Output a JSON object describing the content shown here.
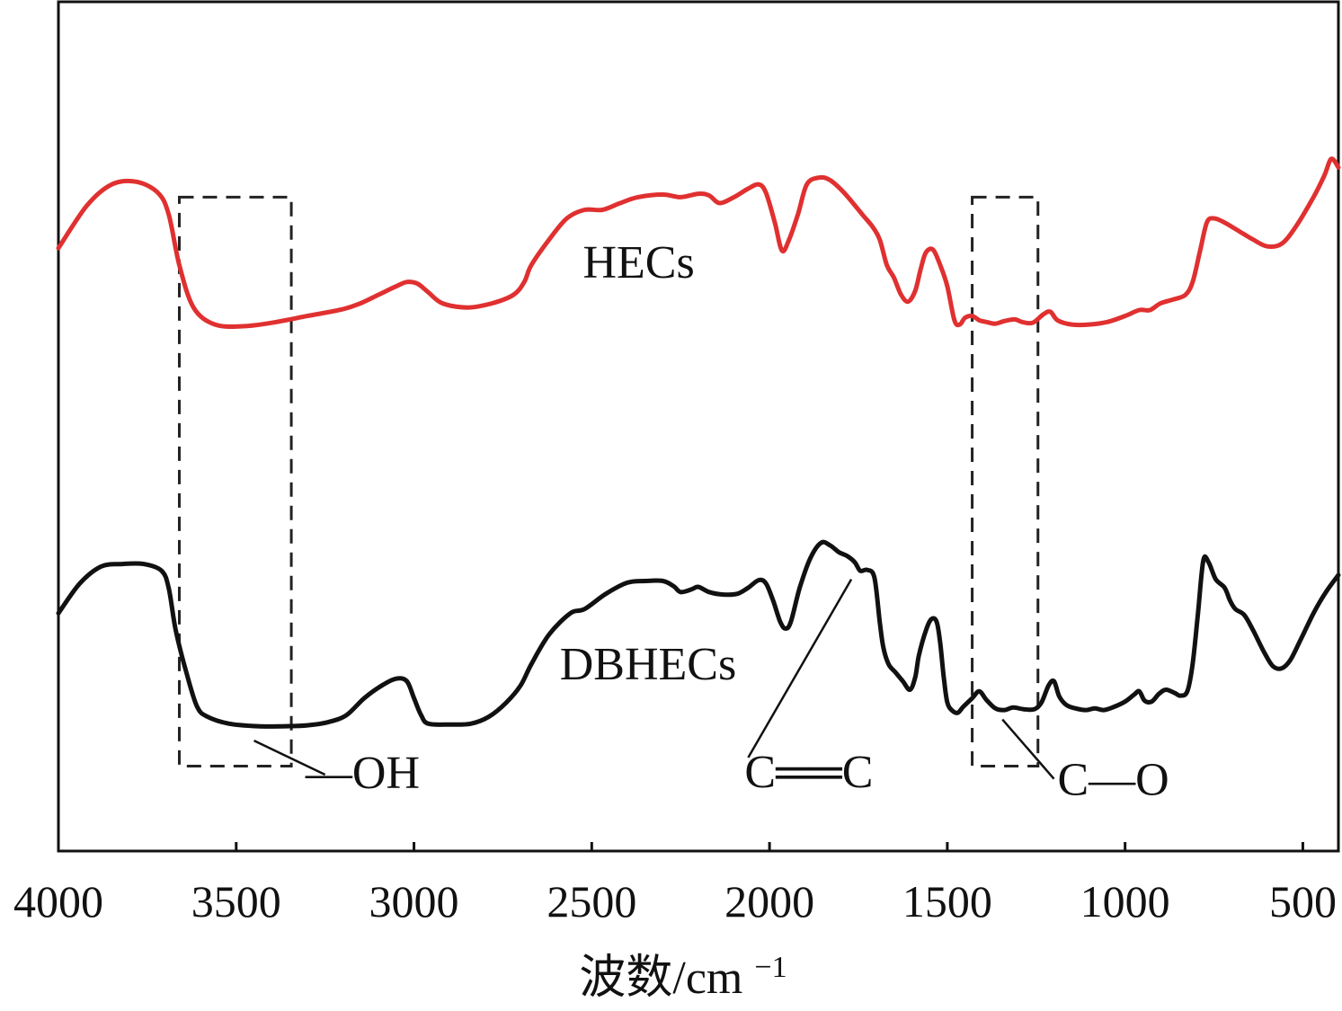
{
  "chart_data": {
    "type": "line",
    "title": "",
    "xlabel": "波数/cm",
    "xlabel_superscript": "−1",
    "ylabel": "",
    "x_reversed": true,
    "xlim": [
      4000,
      400
    ],
    "ylim": [
      0,
      100
    ],
    "y_ticks_shown": false,
    "grid": false,
    "x_ticks": [
      4000,
      3500,
      3000,
      2500,
      2000,
      1500,
      1000,
      500
    ],
    "x_tick_labels": [
      "4000",
      "3500",
      "3000",
      "2500",
      "2000",
      "1500",
      "1000",
      "500"
    ],
    "series": [
      {
        "name": "HECs",
        "color": "#e03030",
        "points": [
          [
            4000,
            71
          ],
          [
            3920,
            76
          ],
          [
            3850,
            78.5
          ],
          [
            3780,
            78.8
          ],
          [
            3720,
            77.5
          ],
          [
            3690,
            75
          ],
          [
            3660,
            69
          ],
          [
            3620,
            64
          ],
          [
            3560,
            62
          ],
          [
            3480,
            61.8
          ],
          [
            3400,
            62.2
          ],
          [
            3300,
            63
          ],
          [
            3200,
            63.8
          ],
          [
            3150,
            64.5
          ],
          [
            3100,
            65.5
          ],
          [
            3050,
            66.5
          ],
          [
            3020,
            67
          ],
          [
            2990,
            66.8
          ],
          [
            2960,
            65.8
          ],
          [
            2920,
            64.5
          ],
          [
            2850,
            64
          ],
          [
            2780,
            64.5
          ],
          [
            2720,
            65.5
          ],
          [
            2690,
            67
          ],
          [
            2670,
            69
          ],
          [
            2620,
            72
          ],
          [
            2570,
            74.5
          ],
          [
            2520,
            75.5
          ],
          [
            2470,
            75.5
          ],
          [
            2420,
            76.3
          ],
          [
            2370,
            77
          ],
          [
            2300,
            77.3
          ],
          [
            2250,
            77
          ],
          [
            2200,
            77.4
          ],
          [
            2170,
            77.2
          ],
          [
            2140,
            76.3
          ],
          [
            2100,
            77
          ],
          [
            2060,
            78
          ],
          [
            2030,
            78.5
          ],
          [
            2010,
            77.5
          ],
          [
            1985,
            74
          ],
          [
            1965,
            70.7
          ],
          [
            1945,
            72
          ],
          [
            1920,
            75
          ],
          [
            1895,
            78.5
          ],
          [
            1860,
            79.3
          ],
          [
            1830,
            79
          ],
          [
            1790,
            77.5
          ],
          [
            1740,
            75
          ],
          [
            1710,
            73.5
          ],
          [
            1690,
            72
          ],
          [
            1670,
            69
          ],
          [
            1650,
            67.5
          ],
          [
            1630,
            65.5
          ],
          [
            1610,
            64.7
          ],
          [
            1590,
            66
          ],
          [
            1575,
            68.5
          ],
          [
            1560,
            70.5
          ],
          [
            1540,
            70.8
          ],
          [
            1520,
            69
          ],
          [
            1500,
            66.5
          ],
          [
            1480,
            62.5
          ],
          [
            1465,
            62
          ],
          [
            1450,
            62.8
          ],
          [
            1430,
            63
          ],
          [
            1410,
            62.5
          ],
          [
            1390,
            62.3
          ],
          [
            1365,
            62.1
          ],
          [
            1340,
            62.4
          ],
          [
            1310,
            62.6
          ],
          [
            1290,
            62.3
          ],
          [
            1260,
            62.2
          ],
          [
            1230,
            63.2
          ],
          [
            1210,
            63.5
          ],
          [
            1190,
            62.5
          ],
          [
            1150,
            62
          ],
          [
            1100,
            62
          ],
          [
            1050,
            62.3
          ],
          [
            1000,
            63
          ],
          [
            960,
            63.7
          ],
          [
            930,
            63.7
          ],
          [
            900,
            64.5
          ],
          [
            860,
            65
          ],
          [
            830,
            65.5
          ],
          [
            810,
            67
          ],
          [
            790,
            70.5
          ],
          [
            770,
            74
          ],
          [
            750,
            74.5
          ],
          [
            720,
            74
          ],
          [
            680,
            73
          ],
          [
            640,
            72
          ],
          [
            600,
            71.2
          ],
          [
            560,
            71.5
          ],
          [
            520,
            73.5
          ],
          [
            470,
            77
          ],
          [
            440,
            79.5
          ],
          [
            420,
            81.5
          ],
          [
            400,
            80.5
          ]
        ]
      },
      {
        "name": "DBHECs",
        "color": "#111111",
        "points": [
          [
            4000,
            28
          ],
          [
            3940,
            31.5
          ],
          [
            3880,
            33.5
          ],
          [
            3820,
            33.8
          ],
          [
            3760,
            33.8
          ],
          [
            3710,
            33
          ],
          [
            3690,
            31
          ],
          [
            3670,
            26
          ],
          [
            3640,
            21
          ],
          [
            3610,
            17
          ],
          [
            3580,
            15.8
          ],
          [
            3520,
            15
          ],
          [
            3440,
            14.7
          ],
          [
            3360,
            14.7
          ],
          [
            3300,
            14.8
          ],
          [
            3240,
            15.2
          ],
          [
            3190,
            16
          ],
          [
            3140,
            18
          ],
          [
            3090,
            19.5
          ],
          [
            3050,
            20.3
          ],
          [
            3020,
            20
          ],
          [
            3000,
            18
          ],
          [
            2980,
            16
          ],
          [
            2960,
            15
          ],
          [
            2900,
            14.9
          ],
          [
            2840,
            15
          ],
          [
            2790,
            15.8
          ],
          [
            2740,
            17.5
          ],
          [
            2700,
            19.5
          ],
          [
            2670,
            22
          ],
          [
            2620,
            25.5
          ],
          [
            2560,
            28
          ],
          [
            2520,
            28.5
          ],
          [
            2460,
            30.3
          ],
          [
            2400,
            31.6
          ],
          [
            2350,
            31.8
          ],
          [
            2300,
            31.8
          ],
          [
            2270,
            31.2
          ],
          [
            2250,
            30.5
          ],
          [
            2220,
            30.8
          ],
          [
            2200,
            31.1
          ],
          [
            2170,
            30.5
          ],
          [
            2130,
            30.2
          ],
          [
            2090,
            30.3
          ],
          [
            2060,
            31
          ],
          [
            2030,
            31.9
          ],
          [
            2010,
            31.5
          ],
          [
            1990,
            29.5
          ],
          [
            1970,
            27
          ],
          [
            1955,
            26.2
          ],
          [
            1940,
            27
          ],
          [
            1915,
            31
          ],
          [
            1885,
            34.5
          ],
          [
            1855,
            36.3
          ],
          [
            1830,
            36
          ],
          [
            1805,
            35.2
          ],
          [
            1780,
            34.7
          ],
          [
            1760,
            34
          ],
          [
            1745,
            33
          ],
          [
            1725,
            33.1
          ],
          [
            1705,
            32.2
          ],
          [
            1690,
            27
          ],
          [
            1680,
            24
          ],
          [
            1665,
            22
          ],
          [
            1645,
            21
          ],
          [
            1625,
            20
          ],
          [
            1605,
            19
          ],
          [
            1590,
            20.5
          ],
          [
            1580,
            23
          ],
          [
            1560,
            26
          ],
          [
            1545,
            27.3
          ],
          [
            1530,
            27
          ],
          [
            1520,
            24.5
          ],
          [
            1510,
            20.5
          ],
          [
            1500,
            17.5
          ],
          [
            1485,
            16.5
          ],
          [
            1470,
            16.3
          ],
          [
            1455,
            17
          ],
          [
            1430,
            18
          ],
          [
            1410,
            18.8
          ],
          [
            1390,
            17.8
          ],
          [
            1365,
            16.8
          ],
          [
            1340,
            16.6
          ],
          [
            1315,
            16.9
          ],
          [
            1285,
            16.7
          ],
          [
            1255,
            16.7
          ],
          [
            1235,
            17.5
          ],
          [
            1215,
            19.5
          ],
          [
            1200,
            20
          ],
          [
            1185,
            18.2
          ],
          [
            1165,
            17.2
          ],
          [
            1140,
            16.8
          ],
          [
            1110,
            16.6
          ],
          [
            1085,
            16.8
          ],
          [
            1060,
            16.6
          ],
          [
            1030,
            17
          ],
          [
            1000,
            17.6
          ],
          [
            975,
            18.4
          ],
          [
            960,
            18.8
          ],
          [
            945,
            17.7
          ],
          [
            925,
            17.6
          ],
          [
            905,
            18.5
          ],
          [
            885,
            19
          ],
          [
            860,
            18.6
          ],
          [
            845,
            18.3
          ],
          [
            825,
            18.8
          ],
          [
            810,
            22
          ],
          [
            795,
            28
          ],
          [
            780,
            34.2
          ],
          [
            765,
            34
          ],
          [
            745,
            32
          ],
          [
            720,
            31
          ],
          [
            705,
            29.5
          ],
          [
            690,
            28.5
          ],
          [
            665,
            27.8
          ],
          [
            640,
            26
          ],
          [
            610,
            23.5
          ],
          [
            585,
            21.8
          ],
          [
            560,
            21.5
          ],
          [
            535,
            22.5
          ],
          [
            505,
            25
          ],
          [
            470,
            28
          ],
          [
            435,
            30.5
          ],
          [
            400,
            32.5
          ]
        ]
      }
    ],
    "series_labels": [
      {
        "text": "HECs",
        "x": 2525,
        "y": 67.5
      },
      {
        "text": "DBHECs",
        "x": 2590,
        "y": 20.2
      }
    ],
    "highlight_boxes": [
      {
        "x_from": 3660,
        "x_to": 3345,
        "y_from": 10,
        "y_to": 77
      },
      {
        "x_from": 1430,
        "x_to": 1245,
        "y_from": 10,
        "y_to": 77
      }
    ],
    "annotations": [
      {
        "text": "—OH",
        "leader_from": [
          3450,
          13
        ],
        "leader_to": [
          3250,
          9
        ],
        "text_x": 3305,
        "text_y": 7.4
      },
      {
        "text": "C══C",
        "leader_from": [
          1770,
          32
        ],
        "leader_to": [
          2060,
          11
        ],
        "text_x": 2070,
        "text_y": 7.5
      },
      {
        "text": "C—O",
        "leader_from": [
          1345,
          15.5
        ],
        "leader_to": [
          1200,
          8.5
        ],
        "text_x": 1190,
        "text_y": 6.6
      }
    ]
  }
}
